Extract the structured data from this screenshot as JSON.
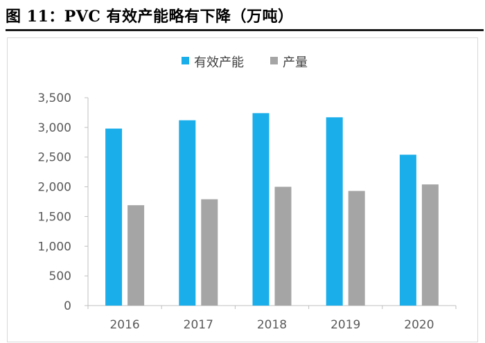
{
  "figure": {
    "title": "图 11：PVC 有效产能略有下降（万吨）"
  },
  "colors": {
    "capacity": "#1aaeea",
    "output": "#a5a5a5",
    "axis": "#bfbfbf",
    "text": "#595959"
  },
  "chart_data": {
    "type": "bar",
    "title": "PVC 有效产能略有下降（万吨）",
    "xlabel": "",
    "ylabel": "",
    "categories": [
      "2016",
      "2017",
      "2018",
      "2019",
      "2020"
    ],
    "series": [
      {
        "name": "有效产能",
        "values": [
          2980,
          3120,
          3240,
          3170,
          2540
        ]
      },
      {
        "name": "产量",
        "values": [
          1690,
          1790,
          2000,
          1930,
          2040
        ]
      }
    ],
    "ylim": [
      0,
      3500
    ],
    "yticks": [
      0,
      500,
      1000,
      1500,
      2000,
      2500,
      3000,
      3500
    ],
    "ytick_labels": [
      "0",
      "500",
      "1,000",
      "1,500",
      "2,000",
      "2,500",
      "3,000",
      "3,500"
    ],
    "grid": false,
    "legend": "top-center"
  }
}
